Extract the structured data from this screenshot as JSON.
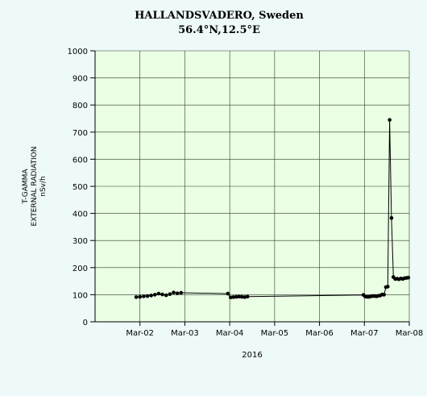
{
  "chart_data": {
    "type": "line",
    "title": "HALLANDSVADERO, Sweden",
    "subtitle": "56.4°N,12.5°E",
    "ylabel_lines": [
      "T-GAMMA",
      "EXTERNAL RADIATION",
      "nSv/h"
    ],
    "xlabel": "2016",
    "ylim": [
      0,
      1000
    ],
    "yticks": [
      0,
      100,
      200,
      300,
      400,
      500,
      600,
      700,
      800,
      900,
      1000
    ],
    "xlim": [
      "2016-03-01T00:00",
      "2016-03-08T00:00"
    ],
    "xticks": [
      {
        "date": "2016-03-02",
        "label": "Mar-02"
      },
      {
        "date": "2016-03-03",
        "label": "Mar-03"
      },
      {
        "date": "2016-03-04",
        "label": "Mar-04"
      },
      {
        "date": "2016-03-05",
        "label": "Mar-05"
      },
      {
        "date": "2016-03-06",
        "label": "Mar-06"
      },
      {
        "date": "2016-03-07",
        "label": "Mar-07"
      },
      {
        "date": "2016-03-08",
        "label": "Mar-08"
      }
    ],
    "grid": true,
    "colors": {
      "plot_bg": "#eaffe4",
      "grid": "#2b3a2b",
      "line": "#000000",
      "marker": "#000000"
    },
    "series": [
      {
        "x": [
          "2016-03-01T22:00",
          "2016-03-02T00:00",
          "2016-03-02T02:00",
          "2016-03-02T04:00",
          "2016-03-02T06:00",
          "2016-03-02T08:00",
          "2016-03-02T10:00",
          "2016-03-02T12:00",
          "2016-03-02T14:00",
          "2016-03-02T16:00",
          "2016-03-02T18:00",
          "2016-03-02T20:00",
          "2016-03-02T22:00",
          "2016-03-03T23:00",
          "2016-03-04T00:30",
          "2016-03-04T02:00",
          "2016-03-04T03:30",
          "2016-03-04T05:00",
          "2016-03-04T06:30",
          "2016-03-04T08:00",
          "2016-03-04T09:30",
          "2016-03-06T23:30",
          "2016-03-07T00:30",
          "2016-03-07T01:30",
          "2016-03-07T02:30",
          "2016-03-07T03:30",
          "2016-03-07T04:30",
          "2016-03-07T05:30",
          "2016-03-07T06:30",
          "2016-03-07T07:30",
          "2016-03-07T08:30",
          "2016-03-07T09:30",
          "2016-03-07T10:30",
          "2016-03-07T11:30",
          "2016-03-07T12:30",
          "2016-03-07T13:30",
          "2016-03-07T14:30",
          "2016-03-07T15:30",
          "2016-03-07T16:30",
          "2016-03-07T17:30",
          "2016-03-07T18:30",
          "2016-03-07T19:30",
          "2016-03-07T20:30",
          "2016-03-07T21:30",
          "2016-03-07T22:30",
          "2016-03-07T23:30"
        ],
        "values": [
          91,
          92,
          94,
          95,
          97,
          100,
          104,
          101,
          98,
          102,
          108,
          105,
          107,
          104,
          90,
          91,
          92,
          93,
          92,
          91,
          93,
          99,
          93,
          92,
          92,
          94,
          95,
          95,
          94,
          96,
          97,
          101,
          100,
          128,
          130,
          745,
          383,
          165,
          158,
          159,
          157,
          160,
          158,
          161,
          162,
          163
        ]
      }
    ]
  }
}
